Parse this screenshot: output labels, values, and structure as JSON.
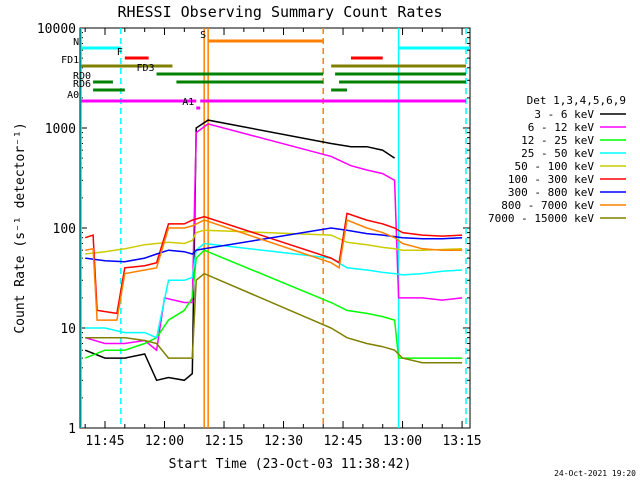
{
  "chart_data": {
    "type": "line",
    "title": "RHESSI Observing Summary Count Rates",
    "xlabel": "Start Time (23-Oct-03 11:38:42)",
    "ylabel": "Count Rate (s⁻¹ detector⁻¹)",
    "xlim": [
      "11:38:42",
      "13:17:00"
    ],
    "ylim": [
      1,
      10000
    ],
    "yscale": "log",
    "x_ticks": [
      "11:45",
      "12:00",
      "12:15",
      "12:30",
      "12:45",
      "13:00",
      "13:15"
    ],
    "y_ticks": [
      "1",
      "10",
      "100",
      "1000",
      "10000"
    ],
    "legend": {
      "title": "Det 1,3,4,5,6,9",
      "placement": "right",
      "entries": [
        "3 - 6 keV",
        "6 - 12 keV",
        "12 - 25 keV",
        "25 - 50 keV",
        "50 - 100 keV",
        "100 - 300 keV",
        "300 - 800 keV",
        "800 - 7000 keV",
        "7000 - 15000 keV"
      ]
    },
    "series": [
      {
        "name": "3 - 6 keV",
        "color": "#000000",
        "points": [
          [
            "11:40",
            6
          ],
          [
            "11:45",
            5
          ],
          [
            "11:50",
            5
          ],
          [
            "11:55",
            5.5
          ],
          [
            "11:58",
            3
          ],
          [
            "12:01",
            3.2
          ],
          [
            "12:05",
            3
          ],
          [
            "12:07",
            3.5
          ],
          [
            "12:08",
            1000
          ],
          [
            "12:11",
            1200
          ],
          [
            "12:42",
            700
          ],
          [
            "12:47",
            650
          ],
          [
            "12:51",
            650
          ],
          [
            "12:55",
            600
          ],
          [
            "12:58",
            500
          ]
        ]
      },
      {
        "name": "6 - 12 keV",
        "color": "#ff00ff",
        "points": [
          [
            "11:40",
            8
          ],
          [
            "11:45",
            7
          ],
          [
            "11:50",
            7
          ],
          [
            "11:55",
            7.5
          ],
          [
            "11:58",
            6
          ],
          [
            "12:00",
            20
          ],
          [
            "12:05",
            18
          ],
          [
            "12:07",
            18
          ],
          [
            "12:08",
            900
          ],
          [
            "12:11",
            1100
          ],
          [
            "12:42",
            520
          ],
          [
            "12:47",
            420
          ],
          [
            "12:51",
            380
          ],
          [
            "12:55",
            350
          ],
          [
            "12:58",
            300
          ],
          [
            "12:59",
            20
          ],
          [
            "13:05",
            20
          ],
          [
            "13:10",
            19
          ],
          [
            "13:15",
            20
          ]
        ]
      },
      {
        "name": "12 - 25 keV",
        "color": "#00ff00",
        "points": [
          [
            "11:40",
            5
          ],
          [
            "11:45",
            6
          ],
          [
            "11:50",
            6
          ],
          [
            "11:55",
            7
          ],
          [
            "11:58",
            8
          ],
          [
            "12:01",
            12
          ],
          [
            "12:05",
            15
          ],
          [
            "12:07",
            20
          ],
          [
            "12:08",
            50
          ],
          [
            "12:10",
            60
          ],
          [
            "12:42",
            18
          ],
          [
            "12:46",
            15
          ],
          [
            "12:51",
            14
          ],
          [
            "12:55",
            13
          ],
          [
            "12:58",
            12
          ],
          [
            "12:59",
            5
          ],
          [
            "13:05",
            5
          ],
          [
            "13:10",
            5
          ],
          [
            "13:15",
            5
          ]
        ]
      },
      {
        "name": "25 - 50 keV",
        "color": "#00ffff",
        "points": [
          [
            "11:40",
            10
          ],
          [
            "11:45",
            10
          ],
          [
            "11:50",
            9
          ],
          [
            "11:55",
            9
          ],
          [
            "11:58",
            8
          ],
          [
            "12:01",
            30
          ],
          [
            "12:05",
            30
          ],
          [
            "12:07",
            32
          ],
          [
            "12:08",
            60
          ],
          [
            "12:10",
            70
          ],
          [
            "12:42",
            50
          ],
          [
            "12:46",
            40
          ],
          [
            "12:51",
            38
          ],
          [
            "12:55",
            36
          ],
          [
            "12:58",
            35
          ],
          [
            "13:00",
            34
          ],
          [
            "13:05",
            35
          ],
          [
            "13:10",
            37
          ],
          [
            "13:15",
            38
          ]
        ]
      },
      {
        "name": "50 - 100 keV",
        "color": "#cccc00",
        "points": [
          [
            "11:40",
            55
          ],
          [
            "11:45",
            58
          ],
          [
            "11:50",
            62
          ],
          [
            "11:55",
            68
          ],
          [
            "11:58",
            70
          ],
          [
            "12:01",
            72
          ],
          [
            "12:05",
            70
          ],
          [
            "12:07",
            75
          ],
          [
            "12:08",
            90
          ],
          [
            "12:10",
            95
          ],
          [
            "12:42",
            85
          ],
          [
            "12:46",
            72
          ],
          [
            "12:51",
            68
          ],
          [
            "12:55",
            64
          ],
          [
            "12:58",
            62
          ],
          [
            "13:00",
            60
          ],
          [
            "13:05",
            60
          ],
          [
            "13:10",
            61
          ],
          [
            "13:15",
            62
          ]
        ]
      },
      {
        "name": "100 - 300 keV",
        "color": "#ff0000",
        "points": [
          [
            "11:40",
            80
          ],
          [
            "11:42",
            85
          ],
          [
            "11:43",
            15
          ],
          [
            "11:48",
            14
          ],
          [
            "11:50",
            40
          ],
          [
            "11:55",
            42
          ],
          [
            "11:58",
            45
          ],
          [
            "12:01",
            110
          ],
          [
            "12:05",
            110
          ],
          [
            "12:07",
            120
          ],
          [
            "12:10",
            130
          ],
          [
            "12:42",
            50
          ],
          [
            "12:44",
            45
          ],
          [
            "12:46",
            140
          ],
          [
            "12:51",
            120
          ],
          [
            "12:55",
            110
          ],
          [
            "12:58",
            100
          ],
          [
            "13:00",
            90
          ],
          [
            "13:05",
            85
          ],
          [
            "13:10",
            83
          ],
          [
            "13:15",
            85
          ]
        ]
      },
      {
        "name": "300 - 800 keV",
        "color": "#0000ff",
        "points": [
          [
            "11:40",
            50
          ],
          [
            "11:45",
            47
          ],
          [
            "11:50",
            46
          ],
          [
            "11:55",
            50
          ],
          [
            "11:58",
            55
          ],
          [
            "12:01",
            60
          ],
          [
            "12:05",
            58
          ],
          [
            "12:07",
            55
          ],
          [
            "12:08",
            60
          ],
          [
            "12:10",
            62
          ],
          [
            "12:42",
            100
          ],
          [
            "12:46",
            95
          ],
          [
            "12:51",
            88
          ],
          [
            "12:55",
            85
          ],
          [
            "12:58",
            82
          ],
          [
            "13:00",
            80
          ],
          [
            "13:05",
            78
          ],
          [
            "13:10",
            78
          ],
          [
            "13:15",
            80
          ]
        ]
      },
      {
        "name": "800 - 7000 keV",
        "color": "#ff8000",
        "points": [
          [
            "11:40",
            60
          ],
          [
            "11:42",
            62
          ],
          [
            "11:43",
            12
          ],
          [
            "11:48",
            12
          ],
          [
            "11:50",
            35
          ],
          [
            "11:55",
            38
          ],
          [
            "11:58",
            40
          ],
          [
            "12:01",
            100
          ],
          [
            "12:05",
            100
          ],
          [
            "12:07",
            105
          ],
          [
            "12:10",
            120
          ],
          [
            "12:42",
            45
          ],
          [
            "12:44",
            40
          ],
          [
            "12:46",
            120
          ],
          [
            "12:51",
            100
          ],
          [
            "12:55",
            90
          ],
          [
            "12:58",
            80
          ],
          [
            "13:00",
            70
          ],
          [
            "13:05",
            62
          ],
          [
            "13:10",
            60
          ],
          [
            "13:15",
            60
          ]
        ]
      },
      {
        "name": "7000 - 15000 keV",
        "color": "#808000",
        "points": [
          [
            "11:40",
            8
          ],
          [
            "11:45",
            8
          ],
          [
            "11:50",
            8
          ],
          [
            "11:55",
            7.5
          ],
          [
            "11:58",
            7
          ],
          [
            "12:01",
            5
          ],
          [
            "12:05",
            5
          ],
          [
            "12:07",
            5
          ],
          [
            "12:08",
            30
          ],
          [
            "12:10",
            35
          ],
          [
            "12:42",
            10
          ],
          [
            "12:46",
            8
          ],
          [
            "12:51",
            7
          ],
          [
            "12:55",
            6.5
          ],
          [
            "12:58",
            6
          ],
          [
            "13:00",
            5
          ],
          [
            "13:05",
            4.5
          ],
          [
            "13:10",
            4.5
          ],
          [
            "13:15",
            4.5
          ]
        ]
      }
    ],
    "flag_bars": [
      {
        "label": "N",
        "color": "#00ffff",
        "segments": [
          [
            "11:39",
            "11:49"
          ],
          [
            "12:59",
            "13:17"
          ]
        ]
      },
      {
        "label": "F",
        "color": "#ff0000",
        "segments": [
          [
            "11:50",
            "11:56"
          ],
          [
            "12:47",
            "12:55"
          ]
        ]
      },
      {
        "label": "S",
        "color": "#ff8000",
        "segments": [
          [
            "12:11",
            "12:40"
          ]
        ]
      },
      {
        "label": "FD1",
        "color": "#808000",
        "segments": [
          [
            "11:39",
            "12:02"
          ],
          [
            "12:42",
            "13:16"
          ]
        ]
      },
      {
        "label": "FD3",
        "color": "#008000",
        "segments": [
          [
            "11:58",
            "12:40"
          ],
          [
            "12:43",
            "13:16"
          ]
        ]
      },
      {
        "label": "RD0",
        "color": "#008000",
        "segments": [
          [
            "11:42",
            "11:47"
          ],
          [
            "12:03",
            "12:40"
          ],
          [
            "12:44",
            "13:16"
          ]
        ]
      },
      {
        "label": "RD6",
        "color": "#008000",
        "segments": [
          [
            "11:42",
            "11:50"
          ],
          [
            "12:42",
            "12:46"
          ]
        ]
      },
      {
        "label": "A0",
        "color": "#ff00ff",
        "segments": [
          [
            "11:39",
            "12:08"
          ],
          [
            "12:09",
            "13:16"
          ]
        ]
      },
      {
        "label": "A1",
        "color": "#ff00ff",
        "segments": [
          [
            "12:08",
            "12:09"
          ]
        ]
      }
    ],
    "vertical_markers": [
      {
        "time": "11:39",
        "color": "#00ffff",
        "style": "solid"
      },
      {
        "time": "11:49",
        "color": "#00ffff",
        "style": "dashed"
      },
      {
        "time": "12:10",
        "color": "#ff8000",
        "style": "solid"
      },
      {
        "time": "12:11",
        "color": "#ff8000",
        "style": "solid"
      },
      {
        "time": "12:40",
        "color": "#ff8000",
        "style": "dashed"
      },
      {
        "time": "12:59",
        "color": "#00ffff",
        "style": "solid"
      },
      {
        "time": "13:16",
        "color": "#00ffff",
        "style": "dashed"
      }
    ]
  },
  "footer": {
    "date_stamp": "24-Oct-2021 19:20"
  }
}
